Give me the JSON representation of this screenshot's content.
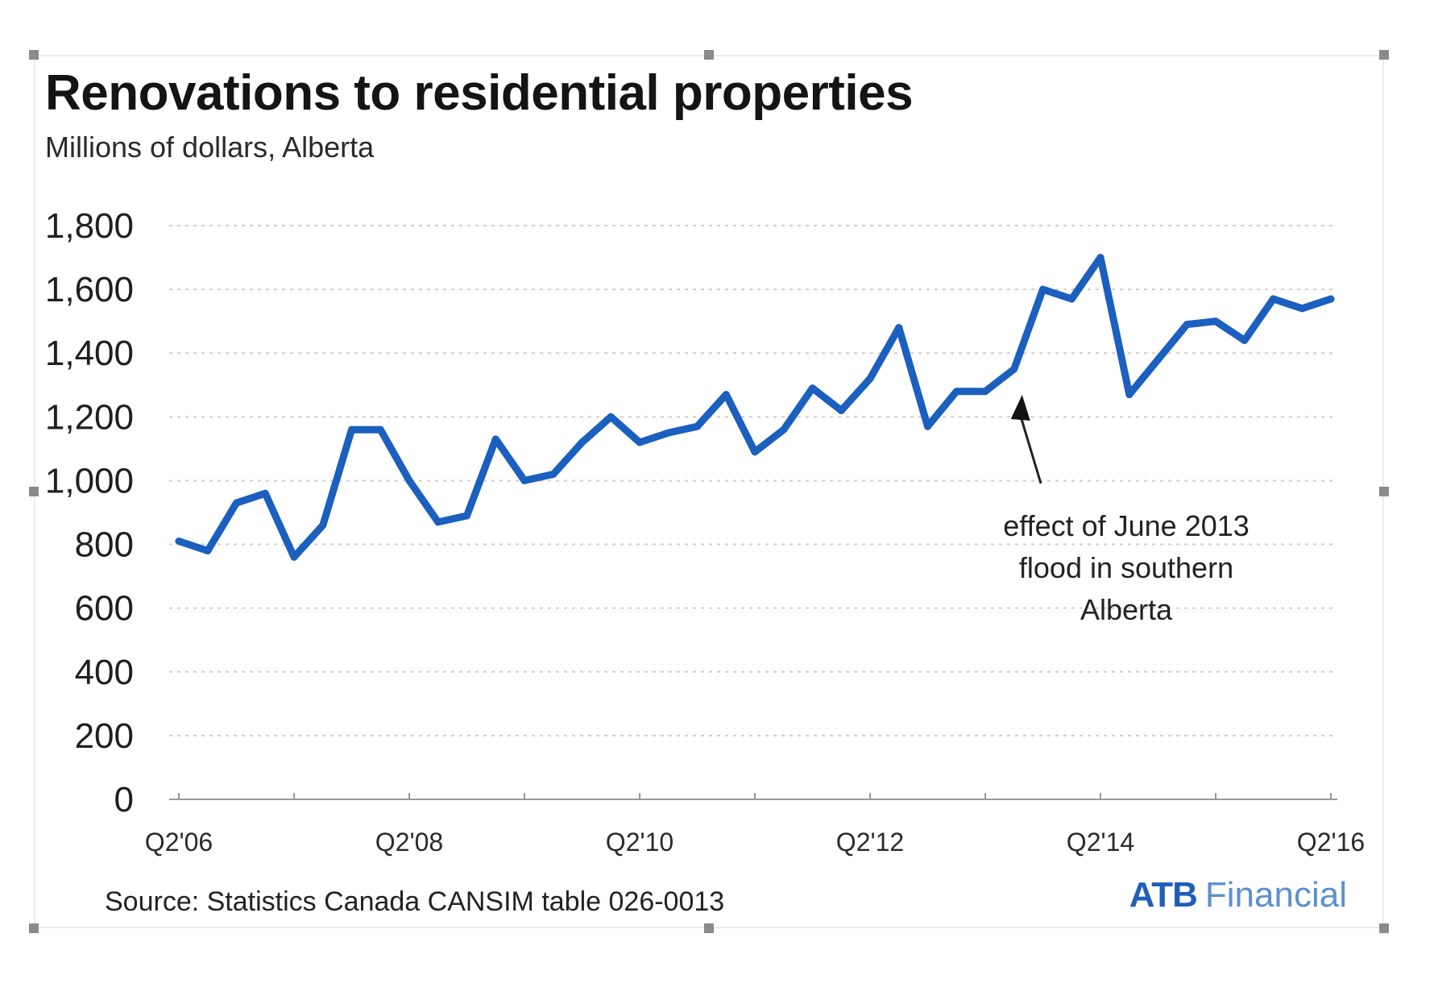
{
  "chart_data": {
    "type": "line",
    "title": "Renovations to residential properties",
    "subtitle": "Millions of dollars, Alberta",
    "xlabel": "",
    "ylabel": "",
    "x_tick_labels": [
      "Q2'06",
      "Q2'08",
      "Q2'10",
      "Q2'12",
      "Q2'14",
      "Q2'16"
    ],
    "ylim": [
      0,
      1800
    ],
    "y_ticks": [
      0,
      200,
      400,
      600,
      800,
      1000,
      1200,
      1400,
      1600,
      1800
    ],
    "y_tick_labels": [
      "0",
      "200",
      "400",
      "600",
      "800",
      "1,000",
      "1,200",
      "1,400",
      "1,600",
      "1,800"
    ],
    "grid": true,
    "x": [
      "Q2'06",
      "Q3'06",
      "Q4'06",
      "Q1'07",
      "Q2'07",
      "Q3'07",
      "Q4'07",
      "Q1'08",
      "Q2'08",
      "Q3'08",
      "Q4'08",
      "Q1'09",
      "Q2'09",
      "Q3'09",
      "Q4'09",
      "Q1'10",
      "Q2'10",
      "Q3'10",
      "Q4'10",
      "Q1'11",
      "Q2'11",
      "Q3'11",
      "Q4'11",
      "Q1'12",
      "Q2'12",
      "Q3'12",
      "Q4'12",
      "Q1'13",
      "Q2'13",
      "Q3'13",
      "Q4'13",
      "Q1'14",
      "Q2'14",
      "Q3'14",
      "Q4'14",
      "Q1'15",
      "Q2'15",
      "Q3'15",
      "Q4'15",
      "Q1'16",
      "Q2'16"
    ],
    "series": [
      {
        "color": "#1b5fbf",
        "values": [
          810,
          780,
          930,
          960,
          760,
          860,
          1160,
          1160,
          1000,
          870,
          890,
          1130,
          1000,
          1020,
          1120,
          1200,
          1120,
          1150,
          1170,
          1270,
          1090,
          1160,
          1290,
          1220,
          1320,
          1480,
          1170,
          1280,
          1280,
          1350,
          1600,
          1570,
          1700,
          1270,
          1380,
          1490,
          1500,
          1440,
          1570,
          1540,
          1570
        ]
      }
    ],
    "annotations": [
      {
        "text_lines": [
          "effect of June 2013",
          "flood in southern",
          "Alberta"
        ],
        "points_to": "Q3'13"
      }
    ]
  },
  "source": "Source:  Statistics Canada  CANSIM  table 026-0013",
  "logo": {
    "bold": "ATB",
    "light": "Financial"
  }
}
